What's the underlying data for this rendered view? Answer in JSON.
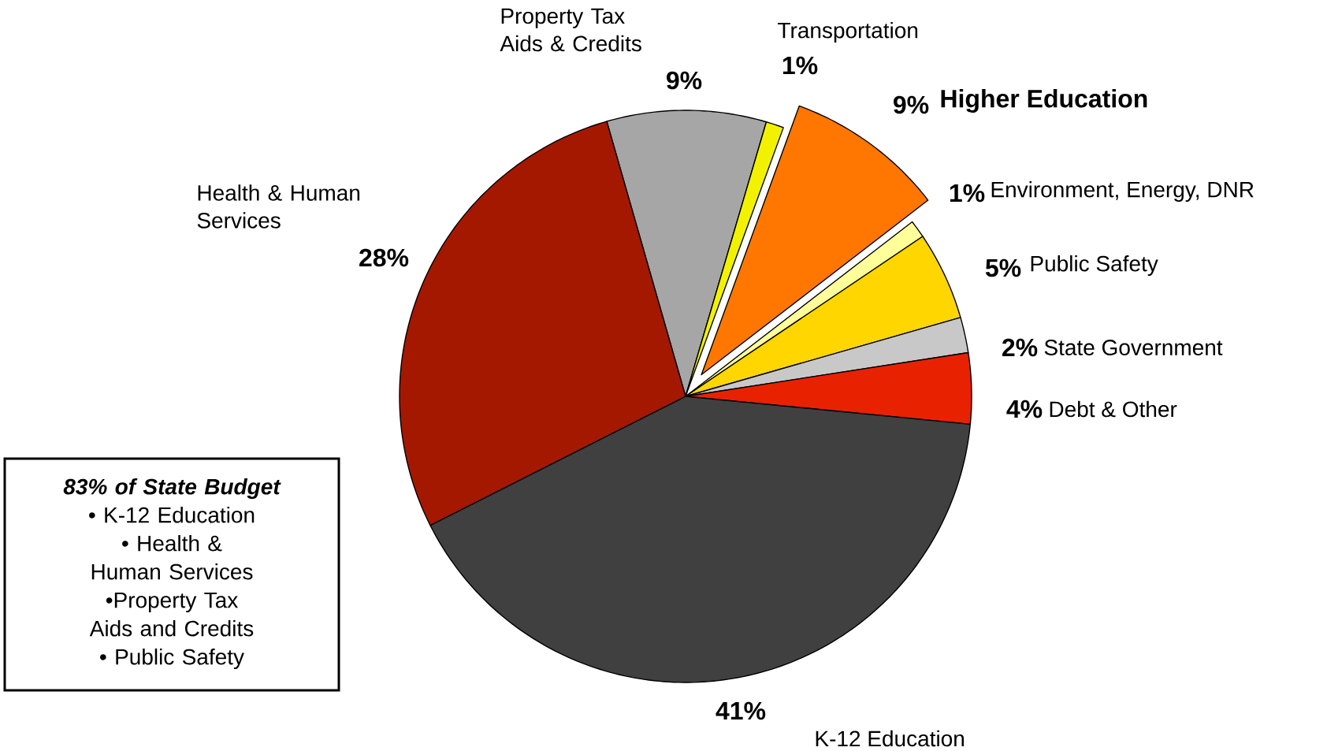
{
  "chart_data": {
    "type": "pie",
    "categories": [
      "Property Tax Aids & Credits",
      "Transportation",
      "Higher Education",
      "Environment, Energy, DNR",
      "Public Safety",
      "State Government",
      "Debt & Other",
      "K-12 Education",
      "Health & Human Services"
    ],
    "values": [
      9,
      1,
      9,
      1,
      5,
      2,
      4,
      41,
      28
    ],
    "value_labels": [
      "9%",
      "1%",
      "9%",
      "1%",
      "5%",
      "2%",
      "4%",
      "41%",
      "28%"
    ],
    "colors": [
      "#a6a6a6",
      "#f2f200",
      "#ff7700",
      "#ffff99",
      "#ffd600",
      "#c8c8c8",
      "#e82200",
      "#404040",
      "#a51800"
    ],
    "annotations": [
      "83% of State Budget",
      "• K-12 Education",
      "•  Health & Human Services",
      "•Property Tax Aids and Credits",
      "• Public Safety"
    ]
  }
}
